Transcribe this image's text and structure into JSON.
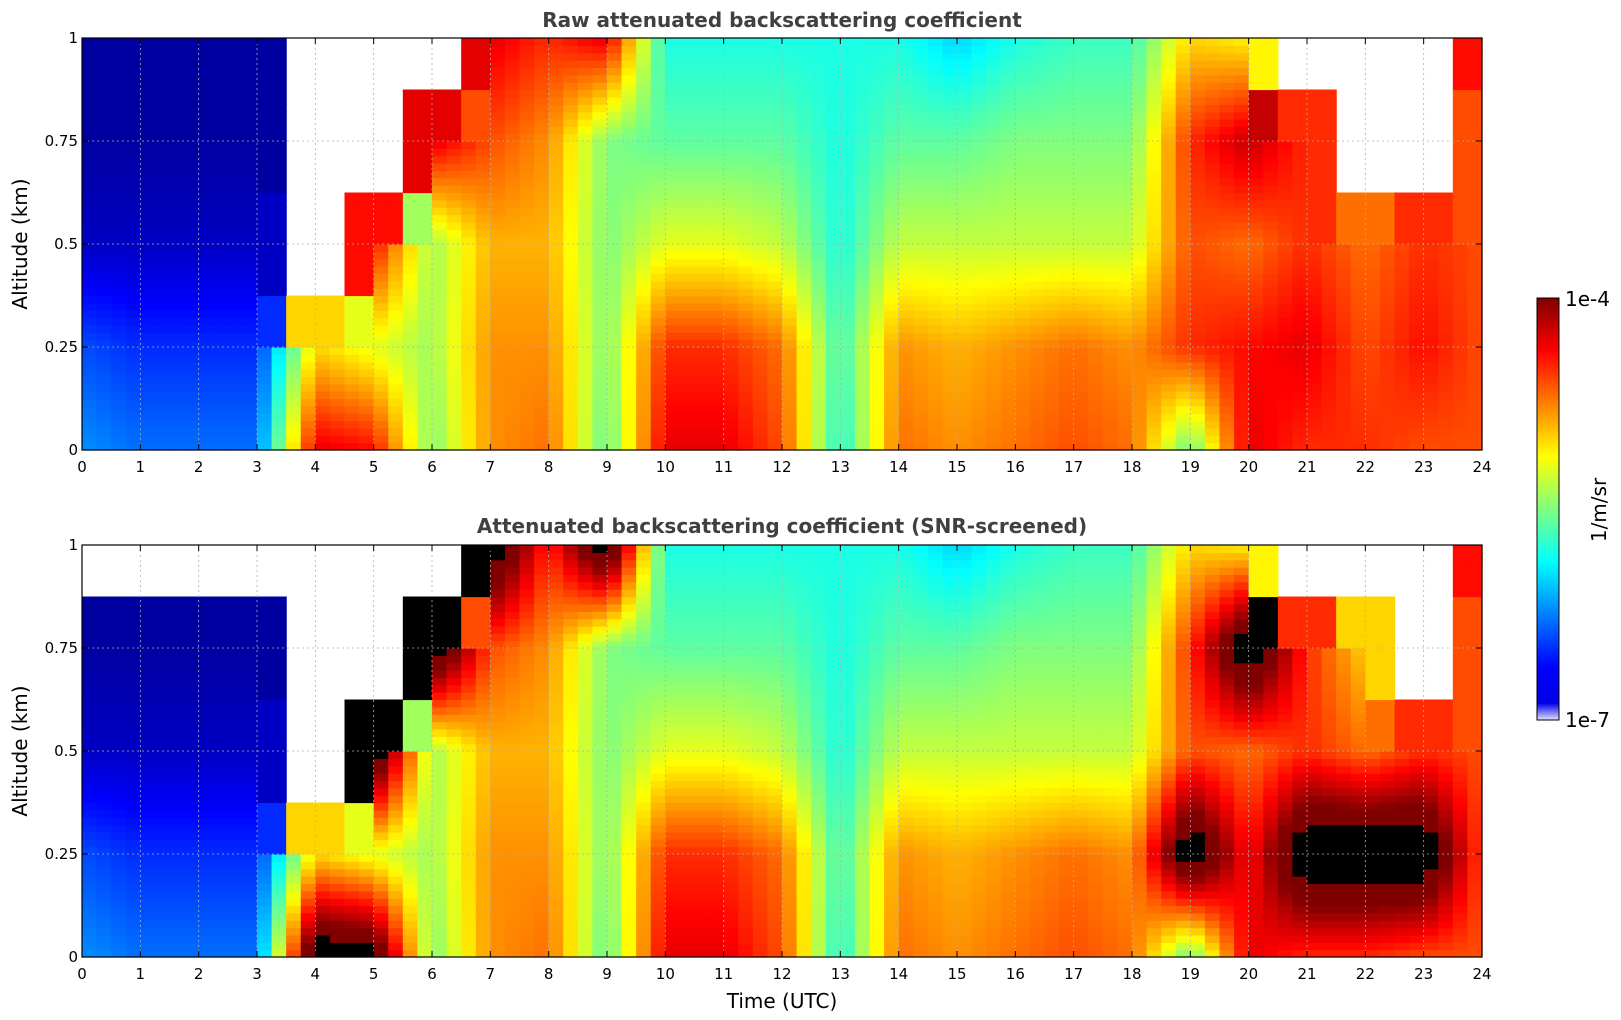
{
  "chart_data": [
    {
      "type": "heatmap",
      "title": "Raw attenuated backscattering coefficient",
      "xlabel": "",
      "ylabel": "Altitude (km)",
      "xlim": [
        0,
        24
      ],
      "ylim": [
        0,
        1
      ],
      "xticks": [
        "0",
        "1",
        "2",
        "3",
        "4",
        "5",
        "6",
        "7",
        "8",
        "9",
        "10",
        "11",
        "12",
        "13",
        "14",
        "15",
        "16",
        "17",
        "18",
        "19",
        "20",
        "21",
        "22",
        "23",
        "24"
      ],
      "yticks": [
        "0",
        "0.25",
        "0.5",
        "0.75",
        "1"
      ],
      "grid": true,
      "x": [
        0,
        1,
        2,
        3,
        4,
        5,
        6,
        7,
        8,
        9,
        10,
        11,
        12,
        13,
        14,
        15,
        16,
        17,
        18,
        19,
        20,
        21,
        22,
        23,
        24
      ],
      "y": [
        0,
        0.25,
        0.5,
        0.75,
        1
      ],
      "values": [
        [
          -6.2,
          -6.3,
          -6.3,
          -6.3,
          -4.3,
          -4.4,
          -5.5,
          -4.8,
          -4.7,
          -5.6,
          -4.3,
          -4.3,
          -4.6,
          -5.8,
          -4.7,
          -4.8,
          -4.7,
          -4.6,
          -4.7,
          -5.6,
          -4.3,
          -4.5,
          -4.5,
          -4.6,
          -4.6
        ],
        [
          -6.4,
          -6.5,
          -6.5,
          -6.5,
          -5.0,
          -5.2,
          -5.4,
          -4.8,
          -4.8,
          -5.5,
          -4.5,
          -4.5,
          -4.7,
          -5.7,
          -4.8,
          -4.9,
          -4.8,
          -4.7,
          -4.8,
          -4.5,
          -4.4,
          -4.3,
          -4.6,
          -4.4,
          -4.6
        ],
        [
          -6.8,
          -6.8,
          -6.8,
          -6.8,
          -99,
          -4.4,
          -5.4,
          -4.9,
          -4.9,
          -5.5,
          -5.2,
          -5.2,
          -5.3,
          -5.8,
          -5.3,
          -5.3,
          -5.3,
          -5.3,
          -5.3,
          -4.6,
          -4.7,
          -4.5,
          -4.7,
          -4.5,
          -4.6
        ],
        [
          -6.9,
          -6.9,
          -6.9,
          -6.9,
          -99,
          -99,
          -4.3,
          -4.6,
          -4.8,
          -5.5,
          -5.6,
          -5.6,
          -5.6,
          -5.8,
          -5.6,
          -5.6,
          -5.5,
          -5.5,
          -5.5,
          -4.5,
          -4.2,
          -4.5,
          -99,
          -99,
          -4.6
        ],
        [
          -6.9,
          -6.9,
          -6.9,
          -6.9,
          -99,
          -99,
          -99,
          -4.3,
          -4.5,
          -4.3,
          -5.8,
          -5.8,
          -5.8,
          -5.8,
          -5.8,
          -6.0,
          -5.8,
          -5.7,
          -5.7,
          -5.0,
          -5.1,
          -99,
          -99,
          -99,
          -4.4
        ]
      ]
    },
    {
      "type": "heatmap",
      "title": "Attenuated backscattering coefficient (SNR-screened)",
      "xlabel": "Time (UTC)",
      "ylabel": "Altitude (km)",
      "xlim": [
        0,
        24
      ],
      "ylim": [
        0,
        1
      ],
      "xticks": [
        "0",
        "1",
        "2",
        "3",
        "4",
        "5",
        "6",
        "7",
        "8",
        "9",
        "10",
        "11",
        "12",
        "13",
        "14",
        "15",
        "16",
        "17",
        "18",
        "19",
        "20",
        "21",
        "22",
        "23",
        "24"
      ],
      "yticks": [
        "0",
        "0.25",
        "0.5",
        "0.75",
        "1"
      ],
      "grid": true,
      "x": [
        0,
        1,
        2,
        3,
        4,
        5,
        6,
        7,
        8,
        9,
        10,
        11,
        12,
        13,
        14,
        15,
        16,
        17,
        18,
        19,
        20,
        21,
        22,
        23,
        24
      ],
      "y": [
        0,
        0.25,
        0.5,
        0.75,
        1
      ],
      "values": [
        [
          -6.2,
          -6.3,
          -6.3,
          -6.3,
          -3.5,
          -3.6,
          -5.5,
          -4.8,
          -4.7,
          -5.6,
          -4.3,
          -4.3,
          -4.6,
          -5.8,
          -4.7,
          -4.8,
          -4.7,
          -4.6,
          -4.7,
          -5.6,
          -4.3,
          -4.5,
          -4.5,
          -4.6,
          -4.6
        ],
        [
          -6.4,
          -6.5,
          -6.5,
          -6.5,
          -5.0,
          -5.2,
          -5.4,
          -4.8,
          -4.8,
          -5.5,
          -4.5,
          -4.5,
          -4.7,
          -5.7,
          -4.8,
          -4.9,
          -4.8,
          -4.7,
          -4.8,
          -3.5,
          -4.4,
          -3.5,
          -3.5,
          -3.5,
          -4.6
        ],
        [
          -6.8,
          -6.8,
          -6.8,
          -6.8,
          -99,
          -3.5,
          -5.4,
          -4.9,
          -4.9,
          -5.5,
          -5.2,
          -5.2,
          -5.3,
          -5.8,
          -5.3,
          -5.3,
          -5.3,
          -5.3,
          -5.3,
          -4.6,
          -4.7,
          -4.5,
          -4.7,
          -4.5,
          -4.6
        ],
        [
          -6.9,
          -6.9,
          -6.9,
          -6.9,
          -99,
          -99,
          -3.5,
          -4.6,
          -4.8,
          -5.5,
          -5.6,
          -5.6,
          -5.6,
          -5.8,
          -5.6,
          -5.6,
          -5.5,
          -5.5,
          -5.5,
          -4.5,
          -3.5,
          -4.5,
          -5.0,
          -99,
          -4.6
        ],
        [
          -99,
          -99,
          -99,
          -99,
          -99,
          -99,
          -99,
          -3.5,
          -4.5,
          -3.5,
          -5.8,
          -5.8,
          -5.8,
          -5.8,
          -5.8,
          -6.0,
          -5.8,
          -5.7,
          -5.7,
          -5.0,
          -5.1,
          -99,
          -99,
          -99,
          -4.4
        ]
      ]
    }
  ],
  "colorbar": {
    "label": "1/m/sr",
    "min_label": "1e-7",
    "max_label": "1e-4",
    "min_log10": -7,
    "max_log10": -4,
    "colormap": "jet"
  }
}
